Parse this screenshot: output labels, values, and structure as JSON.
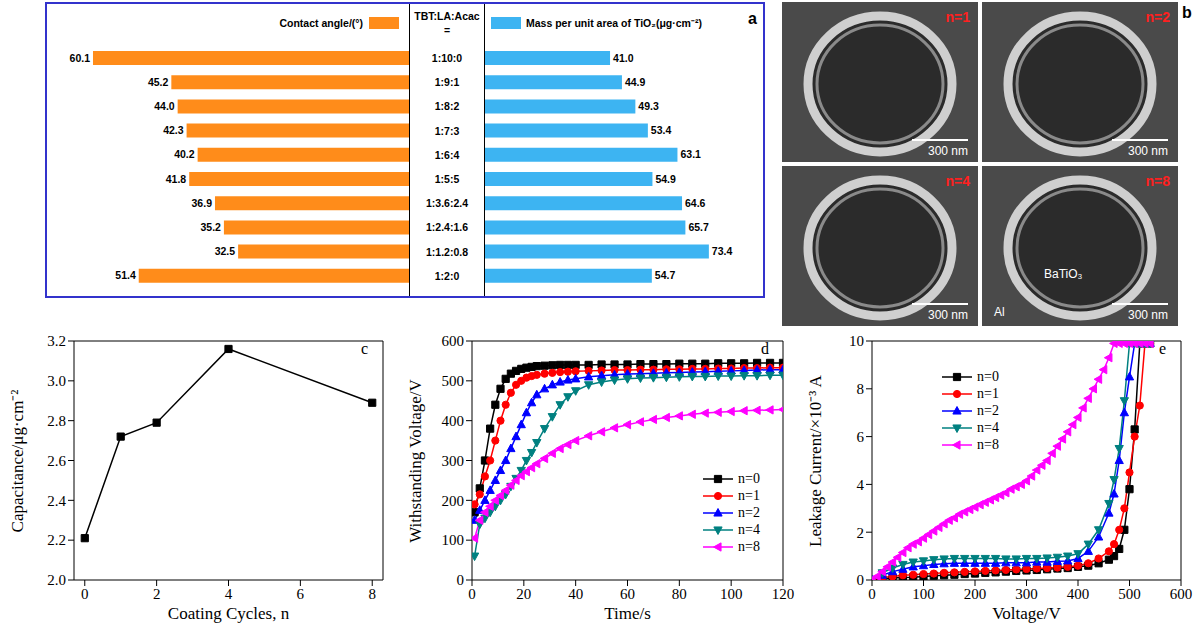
{
  "chart_data": [
    {
      "type": "bar",
      "annotation": "a",
      "orientation": "horizontal",
      "category_title": [
        "TBT:LA:Acac",
        "="
      ],
      "categories": [
        "1:10:0",
        "1:9:1",
        "1:8:2",
        "1:7:3",
        "1:6:4",
        "1:5:5",
        "1:3.6:2.4",
        "1:2.4:1.6",
        "1:1.2:0.8",
        "1:2:0"
      ],
      "series": [
        {
          "name": "Contact angle/(°)",
          "color": "#FF8C1A",
          "values": [
            60.1,
            45.2,
            44.0,
            42.3,
            40.2,
            41.8,
            36.9,
            35.2,
            32.5,
            51.4
          ],
          "value_labels": [
            "60.1",
            "45.2",
            "44.0",
            "42.3",
            "40.2",
            "41.8",
            "36.9",
            "35.2",
            "32.5",
            "51.4"
          ],
          "xlim": [
            0,
            62
          ]
        },
        {
          "name": "Mass per unit area of TiO₂(μg·cm⁻²)",
          "color": "#3DB4F2",
          "values": [
            41.0,
            44.9,
            49.3,
            53.4,
            63.1,
            54.9,
            64.6,
            65.7,
            73.4,
            54.7
          ],
          "value_labels": [
            "41.0",
            "44.9",
            "49.3",
            "53.4",
            "63.1",
            "54.9",
            "64.6",
            "65.7",
            "73.4",
            "54.7"
          ],
          "xlim": [
            0,
            80
          ]
        }
      ],
      "data_labels": true,
      "tick_labels": false,
      "legend": "top"
    },
    {
      "type": "line",
      "annotation": "c",
      "x_label": "Coating Cycles, n",
      "y_label": "Capacitance/μg·cm⁻²",
      "x": [
        0,
        1,
        2,
        4,
        8
      ],
      "values": [
        2.21,
        2.72,
        2.79,
        3.16,
        2.89
      ],
      "color": "#000000",
      "marker": "square",
      "xlim": [
        -0.3,
        8.3
      ],
      "xticks": [
        0,
        2,
        4,
        6,
        8
      ],
      "ylim": [
        2.0,
        3.2
      ],
      "yticks": [
        {
          "value": 2,
          "label": "2.0"
        },
        2.2,
        2.4,
        2.6,
        2.8,
        {
          "value": 3,
          "label": "3.0"
        },
        3.2
      ]
    },
    {
      "type": "line",
      "annotation": "d",
      "x_label": "Time/s",
      "y_label": "Withstanding Voltage/V",
      "x": [
        1,
        3,
        5,
        7,
        9,
        11,
        13,
        15,
        17,
        19,
        21,
        23,
        25,
        28,
        31,
        34,
        37,
        40,
        45,
        50,
        55,
        60,
        65,
        70,
        75,
        80,
        85,
        90,
        95,
        100,
        105,
        110,
        115,
        120
      ],
      "series": [
        {
          "name": "n=0",
          "color": "#000000",
          "marker": "square",
          "values": [
            170,
            230,
            300,
            380,
            440,
            480,
            505,
            518,
            525,
            530,
            533,
            535,
            537,
            538,
            539,
            540,
            540,
            540,
            540,
            541,
            541,
            541,
            542,
            542,
            542,
            543,
            543,
            543,
            544,
            544,
            544,
            545,
            545,
            545
          ]
        },
        {
          "name": "n=1",
          "color": "#FF0000",
          "marker": "circle",
          "values": [
            190,
            215,
            260,
            300,
            350,
            400,
            440,
            470,
            490,
            500,
            508,
            512,
            515,
            518,
            520,
            522,
            523,
            524,
            525,
            526,
            527,
            527,
            528,
            528,
            529,
            529,
            530,
            530,
            531,
            531,
            532,
            532,
            533,
            533
          ]
        },
        {
          "name": "n=2",
          "color": "#0000FF",
          "marker": "triangle-up",
          "values": [
            150,
            175,
            200,
            225,
            250,
            275,
            300,
            330,
            360,
            390,
            420,
            445,
            465,
            480,
            490,
            497,
            502,
            505,
            510,
            513,
            515,
            517,
            518,
            519,
            520,
            521,
            522,
            523,
            524,
            525,
            526,
            527,
            528,
            528
          ]
        },
        {
          "name": "n=4",
          "color": "#008080",
          "marker": "triangle-down",
          "values": [
            60,
            140,
            155,
            170,
            185,
            200,
            215,
            235,
            255,
            275,
            300,
            320,
            345,
            380,
            410,
            440,
            460,
            475,
            490,
            497,
            502,
            505,
            507,
            508,
            509,
            510,
            511,
            511,
            512,
            512,
            513,
            513,
            514,
            514
          ]
        },
        {
          "name": "n=8",
          "color": "#FF00FF",
          "marker": "triangle-left",
          "values": [
            105,
            150,
            170,
            185,
            200,
            212,
            225,
            238,
            250,
            262,
            272,
            282,
            292,
            305,
            318,
            330,
            340,
            350,
            362,
            372,
            382,
            390,
            397,
            403,
            408,
            412,
            416,
            419,
            421,
            423,
            425,
            426,
            427,
            428
          ]
        }
      ],
      "xlim": [
        0,
        120
      ],
      "xticks": [
        0,
        20,
        40,
        60,
        80,
        100,
        120
      ],
      "ylim": [
        0,
        600
      ],
      "yticks": [
        0,
        100,
        200,
        300,
        400,
        500,
        600
      ],
      "legend": "lower right"
    },
    {
      "type": "line",
      "annotation": "e",
      "x_label": "Voltage/V",
      "y_label": "Leakage Current/×10⁻³ A",
      "series": [
        {
          "name": "n=0",
          "color": "#000000",
          "marker": "square",
          "x": [
            0,
            20,
            40,
            60,
            80,
            100,
            120,
            140,
            160,
            180,
            200,
            220,
            240,
            260,
            280,
            300,
            320,
            340,
            360,
            380,
            400,
            420,
            440,
            460,
            470,
            480,
            490,
            500,
            510,
            520,
            530,
            540
          ],
          "values": [
            0,
            0.05,
            0.08,
            0.1,
            0.12,
            0.15,
            0.18,
            0.2,
            0.22,
            0.25,
            0.27,
            0.3,
            0.32,
            0.35,
            0.38,
            0.4,
            0.42,
            0.45,
            0.48,
            0.5,
            0.55,
            0.6,
            0.7,
            0.85,
            1.0,
            1.3,
            2.1,
            3.8,
            6.3,
            9.9,
            9.9,
            9.9
          ]
        },
        {
          "name": "n=1",
          "color": "#FF0000",
          "marker": "circle",
          "x": [
            0,
            20,
            40,
            60,
            80,
            100,
            120,
            140,
            160,
            180,
            200,
            220,
            240,
            260,
            280,
            300,
            320,
            340,
            360,
            380,
            400,
            420,
            440,
            460,
            470,
            480,
            490,
            500,
            510,
            520,
            530,
            540
          ],
          "values": [
            0,
            0.1,
            0.15,
            0.2,
            0.22,
            0.25,
            0.27,
            0.3,
            0.32,
            0.34,
            0.36,
            0.38,
            0.4,
            0.42,
            0.44,
            0.46,
            0.48,
            0.5,
            0.52,
            0.55,
            0.6,
            0.7,
            0.9,
            1.2,
            1.5,
            2.1,
            3.0,
            4.5,
            6.0,
            7.3,
            9.9,
            9.9
          ]
        },
        {
          "name": "n=2",
          "color": "#0000FF",
          "marker": "triangle-up",
          "x": [
            0,
            20,
            40,
            60,
            80,
            100,
            120,
            140,
            160,
            180,
            200,
            220,
            240,
            260,
            280,
            300,
            320,
            340,
            360,
            380,
            400,
            420,
            440,
            460,
            470,
            480,
            490,
            500,
            510,
            520,
            530,
            540
          ],
          "values": [
            0,
            0.2,
            0.35,
            0.45,
            0.55,
            0.6,
            0.65,
            0.68,
            0.7,
            0.7,
            0.7,
            0.7,
            0.7,
            0.72,
            0.72,
            0.72,
            0.75,
            0.75,
            0.78,
            0.8,
            0.9,
            1.2,
            1.8,
            2.8,
            3.6,
            5.0,
            7.0,
            8.5,
            9.9,
            9.9,
            9.9,
            9.9
          ]
        },
        {
          "name": "n=4",
          "color": "#008080",
          "marker": "triangle-down",
          "x": [
            0,
            20,
            40,
            60,
            80,
            100,
            120,
            140,
            160,
            180,
            200,
            220,
            240,
            260,
            280,
            300,
            320,
            340,
            360,
            380,
            400,
            420,
            440,
            460,
            470,
            480,
            490,
            500,
            510,
            520,
            530,
            540
          ],
          "values": [
            0,
            0.3,
            0.5,
            0.65,
            0.75,
            0.8,
            0.85,
            0.88,
            0.9,
            0.9,
            0.9,
            0.9,
            0.9,
            0.88,
            0.88,
            0.9,
            0.9,
            0.92,
            0.95,
            1.0,
            1.1,
            1.5,
            2.1,
            3.2,
            4.2,
            5.5,
            7.5,
            9.9,
            9.9,
            9.9,
            9.9,
            9.9
          ]
        },
        {
          "name": "n=8",
          "color": "#FF00FF",
          "marker": "triangle-left",
          "x": [
            0,
            10,
            20,
            30,
            40,
            50,
            60,
            70,
            80,
            90,
            100,
            110,
            120,
            130,
            140,
            150,
            160,
            170,
            180,
            190,
            200,
            210,
            220,
            230,
            240,
            250,
            260,
            270,
            280,
            290,
            300,
            310,
            320,
            330,
            340,
            350,
            360,
            370,
            380,
            390,
            400,
            410,
            420,
            430,
            440,
            450,
            460,
            470,
            480,
            490,
            500,
            510,
            520,
            530,
            540
          ],
          "values": [
            0,
            0.15,
            0.35,
            0.55,
            0.75,
            0.95,
            1.15,
            1.35,
            1.5,
            1.6,
            1.75,
            1.9,
            2.05,
            2.2,
            2.35,
            2.5,
            2.6,
            2.75,
            2.85,
            2.95,
            3.05,
            3.15,
            3.25,
            3.35,
            3.45,
            3.55,
            3.65,
            3.8,
            3.9,
            4.0,
            4.15,
            4.35,
            4.6,
            4.8,
            5.0,
            5.3,
            5.6,
            5.9,
            6.2,
            6.5,
            6.8,
            7.2,
            7.6,
            8.0,
            8.4,
            8.8,
            9.3,
            9.9,
            9.9,
            9.9,
            9.9,
            9.9,
            9.9,
            9.9,
            9.9
          ]
        }
      ],
      "xlim": [
        0,
        600
      ],
      "xticks": [
        0,
        100,
        200,
        300,
        400,
        500,
        600
      ],
      "ylim": [
        0,
        10
      ],
      "yticks": [
        0,
        2,
        4,
        6,
        8,
        10
      ],
      "legend": "upper left"
    }
  ],
  "image_panel": {
    "label": "b",
    "images": [
      {
        "label": "n=1",
        "scale_bar": "300 nm"
      },
      {
        "label": "n=2",
        "scale_bar": "300 nm"
      },
      {
        "label": "n=4",
        "scale_bar": "300 nm"
      },
      {
        "label": "n=8",
        "scale_bar": "300 nm",
        "annotations": [
          "BaTiO₃",
          "Al"
        ]
      }
    ]
  }
}
